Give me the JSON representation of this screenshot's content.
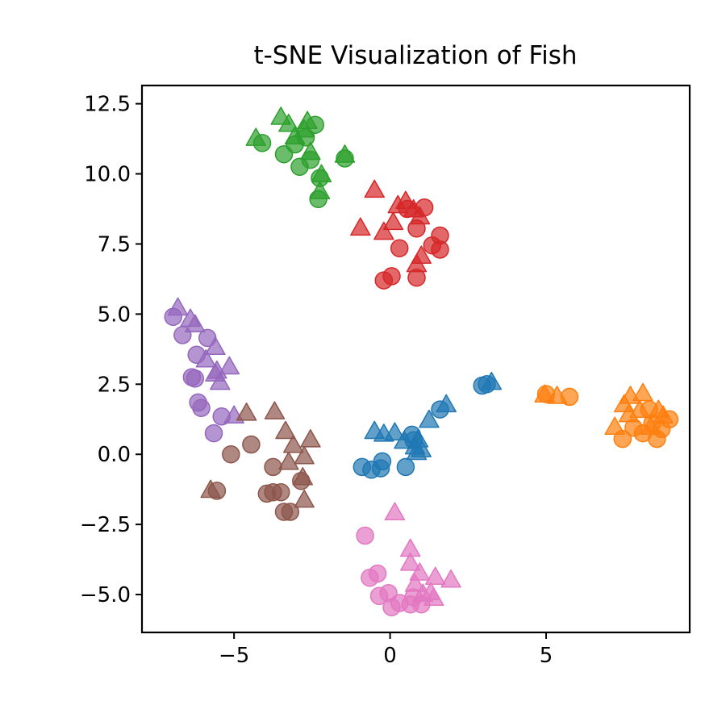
{
  "chart_data": {
    "type": "scatter",
    "title": "t-SNE Visualization of Fish",
    "xlabel": "",
    "ylabel": "",
    "xlim": [
      -7.95,
      9.6
    ],
    "ylim": [
      -6.35,
      13.15
    ],
    "x_ticks": [
      -5,
      0,
      5
    ],
    "x_tick_labels": [
      "−5",
      "0",
      "5"
    ],
    "y_ticks": [
      -5.0,
      -2.5,
      0.0,
      2.5,
      5.0,
      7.5,
      10.0,
      12.5
    ],
    "y_tick_labels": [
      "−5.0",
      "−2.5",
      "0.0",
      "2.5",
      "5.0",
      "7.5",
      "10.0",
      "12.5"
    ],
    "grid": false,
    "legend": false,
    "marker_alpha": 0.7,
    "series": [
      {
        "color": "#1f77b4",
        "circles": [
          [
            -0.9,
            -0.45
          ],
          [
            -0.6,
            -0.55
          ],
          [
            -0.3,
            -0.5
          ],
          [
            -0.25,
            -0.25
          ],
          [
            0.5,
            -0.45
          ],
          [
            0.7,
            0.7
          ],
          [
            0.75,
            0.5
          ],
          [
            1.6,
            1.6
          ],
          [
            2.95,
            2.45
          ],
          [
            3.1,
            2.5
          ]
        ],
        "triangles": [
          [
            -0.5,
            0.8
          ],
          [
            -0.2,
            0.7
          ],
          [
            0.15,
            0.75
          ],
          [
            0.45,
            0.45
          ],
          [
            0.8,
            0.25
          ],
          [
            0.9,
            0.5
          ],
          [
            0.85,
            0.05
          ],
          [
            1.0,
            0.15
          ],
          [
            1.25,
            1.2
          ],
          [
            1.8,
            1.75
          ],
          [
            3.25,
            2.55
          ]
        ]
      },
      {
        "color": "#ff7f0e",
        "circles": [
          [
            5.0,
            2.15
          ],
          [
            5.75,
            2.05
          ],
          [
            7.45,
            0.55
          ],
          [
            7.8,
            0.95
          ],
          [
            8.1,
            0.75
          ],
          [
            8.3,
            1.6
          ],
          [
            8.4,
            1.1
          ],
          [
            8.55,
            0.55
          ],
          [
            8.7,
            0.9
          ],
          [
            8.95,
            1.25
          ]
        ],
        "triangles": [
          [
            4.95,
            2.1
          ],
          [
            5.35,
            2.05
          ],
          [
            7.2,
            0.95
          ],
          [
            7.5,
            1.75
          ],
          [
            7.65,
            1.4
          ],
          [
            7.7,
            2.05
          ],
          [
            8.0,
            1.55
          ],
          [
            8.1,
            2.15
          ],
          [
            8.35,
            0.95
          ],
          [
            8.6,
            1.55
          ],
          [
            8.75,
            1.35
          ]
        ]
      },
      {
        "color": "#2ca02c",
        "circles": [
          [
            -4.1,
            11.1
          ],
          [
            -3.4,
            10.7
          ],
          [
            -3.05,
            11.05
          ],
          [
            -2.9,
            10.25
          ],
          [
            -2.7,
            11.3
          ],
          [
            -2.55,
            10.5
          ],
          [
            -2.4,
            11.75
          ],
          [
            -2.25,
            9.85
          ],
          [
            -2.3,
            9.1
          ],
          [
            -1.45,
            10.55
          ]
        ],
        "triangles": [
          [
            -4.3,
            11.25
          ],
          [
            -3.5,
            12.0
          ],
          [
            -3.25,
            11.75
          ],
          [
            -3.05,
            11.3
          ],
          [
            -2.75,
            11.55
          ],
          [
            -2.65,
            11.85
          ],
          [
            -2.55,
            10.75
          ],
          [
            -2.2,
            9.95
          ],
          [
            -2.25,
            9.35
          ],
          [
            -1.45,
            10.65
          ]
        ]
      },
      {
        "color": "#d62728",
        "circles": [
          [
            -0.2,
            6.2
          ],
          [
            0.05,
            6.35
          ],
          [
            0.3,
            7.35
          ],
          [
            0.55,
            8.75
          ],
          [
            0.85,
            8.05
          ],
          [
            0.85,
            6.3
          ],
          [
            1.1,
            8.8
          ],
          [
            1.35,
            7.45
          ],
          [
            1.6,
            7.8
          ],
          [
            1.6,
            7.3
          ]
        ],
        "triangles": [
          [
            -0.95,
            8.05
          ],
          [
            -0.5,
            9.4
          ],
          [
            -0.2,
            7.9
          ],
          [
            0.1,
            8.25
          ],
          [
            0.25,
            8.85
          ],
          [
            0.5,
            9.0
          ],
          [
            0.75,
            8.7
          ],
          [
            0.95,
            8.45
          ],
          [
            1.0,
            7.05
          ],
          [
            0.85,
            6.75
          ]
        ]
      },
      {
        "color": "#9467bd",
        "circles": [
          [
            -6.95,
            4.9
          ],
          [
            -6.65,
            4.25
          ],
          [
            -6.35,
            2.75
          ],
          [
            -6.25,
            2.7
          ],
          [
            -6.2,
            3.55
          ],
          [
            -6.15,
            1.85
          ],
          [
            -6.05,
            1.65
          ],
          [
            -5.85,
            4.15
          ],
          [
            -5.65,
            0.75
          ],
          [
            -5.4,
            1.35
          ]
        ],
        "triangles": [
          [
            -6.8,
            5.2
          ],
          [
            -6.4,
            4.8
          ],
          [
            -6.25,
            4.6
          ],
          [
            -5.9,
            3.35
          ],
          [
            -5.6,
            3.8
          ],
          [
            -5.6,
            2.85
          ],
          [
            -5.55,
            2.95
          ],
          [
            -5.45,
            2.55
          ],
          [
            -5.15,
            3.1
          ],
          [
            -5.0,
            1.35
          ]
        ]
      },
      {
        "color": "#8c564b",
        "circles": [
          [
            -5.55,
            -1.3
          ],
          [
            -5.1,
            0.0
          ],
          [
            -4.45,
            0.35
          ],
          [
            -3.95,
            -1.4
          ],
          [
            -3.75,
            -1.35
          ],
          [
            -3.75,
            -0.45
          ],
          [
            -3.5,
            -1.35
          ],
          [
            -3.4,
            -2.05
          ],
          [
            -3.2,
            -2.05
          ],
          [
            -2.85,
            -0.95
          ]
        ],
        "triangles": [
          [
            -5.75,
            -1.3
          ],
          [
            -4.6,
            1.45
          ],
          [
            -3.7,
            1.5
          ],
          [
            -3.35,
            0.8
          ],
          [
            -3.25,
            -0.3
          ],
          [
            -3.1,
            0.3
          ],
          [
            -2.75,
            -0.1
          ],
          [
            -2.8,
            -0.85
          ],
          [
            -2.75,
            -1.65
          ],
          [
            -2.55,
            0.5
          ]
        ]
      },
      {
        "color": "#e377c2",
        "circles": [
          [
            -0.8,
            -2.9
          ],
          [
            -0.65,
            -4.4
          ],
          [
            -0.4,
            -4.25
          ],
          [
            -0.35,
            -5.05
          ],
          [
            -0.05,
            -4.95
          ],
          [
            0.05,
            -5.45
          ],
          [
            0.3,
            -5.3
          ],
          [
            0.65,
            -5.35
          ],
          [
            0.75,
            -5.1
          ],
          [
            1.0,
            -5.35
          ]
        ],
        "triangles": [
          [
            0.15,
            -2.1
          ],
          [
            0.65,
            -3.4
          ],
          [
            0.65,
            -3.9
          ],
          [
            0.8,
            -4.65
          ],
          [
            0.95,
            -4.25
          ],
          [
            1.05,
            -5.0
          ],
          [
            1.3,
            -4.95
          ],
          [
            1.4,
            -5.15
          ],
          [
            1.45,
            -4.4
          ],
          [
            1.95,
            -4.5
          ]
        ]
      }
    ]
  },
  "title": "t-SNE Visualization of Fish"
}
